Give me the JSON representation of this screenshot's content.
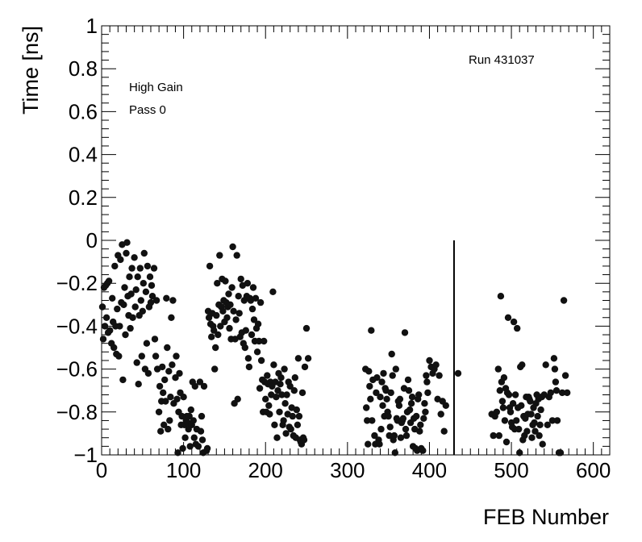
{
  "chart_data": {
    "type": "scatter",
    "xlabel": "FEB Number",
    "ylabel": "Time [ns]",
    "xlim": [
      0,
      620
    ],
    "ylim": [
      -1,
      1
    ],
    "x_ticks": [
      0,
      100,
      200,
      300,
      400,
      500,
      600
    ],
    "y_ticks": [
      -1,
      -0.8,
      -0.6,
      -0.4,
      -0.2,
      0,
      0.2,
      0.4,
      0.6,
      0.8,
      1
    ],
    "x_tick_labels": [
      "0",
      "100",
      "200",
      "300",
      "400",
      "500",
      "600"
    ],
    "y_tick_labels": [
      "−1",
      "−0.8",
      "−0.6",
      "−0.4",
      "−0.2",
      "0",
      "0.2",
      "0.4",
      "0.6",
      "0.8",
      "1"
    ],
    "annotations": {
      "run": "Run 431037",
      "gain": "High Gain",
      "pass": "Pass 0"
    },
    "grid": false,
    "marker": "filled-circle",
    "marker_color": "#111111",
    "vertical_line": {
      "x": 430,
      "y_from": -1,
      "y_to": 0
    },
    "points": [
      [
        1,
        -0.31
      ],
      [
        2,
        -0.46
      ],
      [
        3,
        -0.22
      ],
      [
        4,
        -0.4
      ],
      [
        5,
        -0.21
      ],
      [
        6,
        -0.36
      ],
      [
        7,
        -0.2
      ],
      [
        8,
        -0.43
      ],
      [
        9,
        -0.19
      ],
      [
        10,
        -0.42
      ],
      [
        12,
        -0.48
      ],
      [
        13,
        -0.27
      ],
      [
        14,
        -0.38
      ],
      [
        15,
        -0.5
      ],
      [
        16,
        -0.12
      ],
      [
        17,
        -0.4
      ],
      [
        18,
        -0.53
      ],
      [
        19,
        -0.32
      ],
      [
        20,
        -0.07
      ],
      [
        21,
        -0.54
      ],
      [
        22,
        -0.4
      ],
      [
        23,
        -0.09
      ],
      [
        24,
        -0.29
      ],
      [
        25,
        -0.02
      ],
      [
        26,
        -0.65
      ],
      [
        27,
        -0.3
      ],
      [
        28,
        -0.22
      ],
      [
        29,
        -0.44
      ],
      [
        30,
        -0.06
      ],
      [
        31,
        -0.01
      ],
      [
        32,
        -0.26
      ],
      [
        33,
        -0.35
      ],
      [
        34,
        -0.17
      ],
      [
        35,
        -0.41
      ],
      [
        36,
        -0.25
      ],
      [
        37,
        -0.13
      ],
      [
        38,
        -0.36
      ],
      [
        40,
        -0.08
      ],
      [
        41,
        -0.31
      ],
      [
        42,
        -0.23
      ],
      [
        43,
        -0.57
      ],
      [
        44,
        -0.17
      ],
      [
        45,
        -0.67
      ],
      [
        46,
        -0.35
      ],
      [
        47,
        -0.13
      ],
      [
        48,
        -0.28
      ],
      [
        49,
        -0.54
      ],
      [
        50,
        -0.33
      ],
      [
        51,
        -0.2
      ],
      [
        52,
        -0.06
      ],
      [
        53,
        -0.6
      ],
      [
        54,
        -0.24
      ],
      [
        55,
        -0.48
      ],
      [
        56,
        -0.12
      ],
      [
        57,
        -0.62
      ],
      [
        58,
        -0.31
      ],
      [
        59,
        -0.17
      ],
      [
        60,
        -0.29
      ],
      [
        61,
        -0.21
      ],
      [
        62,
        -0.26
      ],
      [
        64,
        -0.13
      ],
      [
        65,
        -0.46
      ],
      [
        66,
        -0.54
      ],
      [
        67,
        -0.28
      ],
      [
        68,
        -0.6
      ],
      [
        70,
        -0.8
      ],
      [
        71,
        -0.68
      ],
      [
        72,
        -0.89
      ],
      [
        73,
        -0.75
      ],
      [
        74,
        -0.59
      ],
      [
        75,
        -0.71
      ],
      [
        76,
        -0.86
      ],
      [
        77,
        -0.65
      ],
      [
        78,
        -0.75
      ],
      [
        79,
        -0.27
      ],
      [
        80,
        -0.5
      ],
      [
        81,
        -0.88
      ],
      [
        82,
        -0.61
      ],
      [
        83,
        -0.84
      ],
      [
        84,
        -0.73
      ],
      [
        85,
        -0.36
      ],
      [
        86,
        -0.58
      ],
      [
        87,
        -0.28
      ],
      [
        88,
        -0.76
      ],
      [
        90,
        -0.64
      ],
      [
        91,
        -0.54
      ],
      [
        92,
        -0.74
      ],
      [
        93,
        -0.99
      ],
      [
        94,
        -0.8
      ],
      [
        95,
        -0.62
      ],
      [
        96,
        -0.71
      ],
      [
        97,
        -0.86
      ],
      [
        98,
        -0.82
      ],
      [
        99,
        -0.97
      ],
      [
        100,
        -0.73
      ],
      [
        101,
        -0.86
      ],
      [
        102,
        -0.92
      ],
      [
        103,
        -0.84
      ],
      [
        104,
        -0.82
      ],
      [
        105,
        -0.85
      ],
      [
        106,
        -0.88
      ],
      [
        107,
        -0.82
      ],
      [
        108,
        -0.96
      ],
      [
        109,
        -0.79
      ],
      [
        110,
        -0.86
      ],
      [
        111,
        -0.66
      ],
      [
        112,
        -0.84
      ],
      [
        113,
        -0.92
      ],
      [
        114,
        -0.68
      ],
      [
        115,
        -0.95
      ],
      [
        116,
        -0.88
      ],
      [
        118,
        -0.96
      ],
      [
        120,
        -0.66
      ],
      [
        121,
        -0.89
      ],
      [
        122,
        -0.82
      ],
      [
        123,
        -0.93
      ],
      [
        124,
        -0.99
      ],
      [
        125,
        -0.68
      ],
      [
        128,
        -0.98
      ],
      [
        129,
        -0.97
      ],
      [
        130,
        -0.33
      ],
      [
        131,
        -0.36
      ],
      [
        132,
        -0.12
      ],
      [
        133,
        -0.39
      ],
      [
        134,
        -0.45
      ],
      [
        135,
        -0.34
      ],
      [
        136,
        -0.4
      ],
      [
        137,
        -0.42
      ],
      [
        138,
        -0.6
      ],
      [
        139,
        -0.5
      ],
      [
        140,
        -0.35
      ],
      [
        141,
        -0.2
      ],
      [
        142,
        -0.44
      ],
      [
        143,
        -0.3
      ],
      [
        144,
        -0.07
      ],
      [
        145,
        -0.4
      ],
      [
        146,
        -0.31
      ],
      [
        147,
        -0.18
      ],
      [
        148,
        -0.33
      ],
      [
        149,
        -0.28
      ],
      [
        150,
        -0.38
      ],
      [
        151,
        -0.19
      ],
      [
        152,
        -0.29
      ],
      [
        153,
        -0.36
      ],
      [
        154,
        -0.31
      ],
      [
        155,
        -0.25
      ],
      [
        156,
        -0.41
      ],
      [
        157,
        -0.3
      ],
      [
        158,
        -0.46
      ],
      [
        159,
        -0.22
      ],
      [
        160,
        -0.03
      ],
      [
        161,
        -0.33
      ],
      [
        162,
        -0.76
      ],
      [
        163,
        -0.46
      ],
      [
        164,
        -0.37
      ],
      [
        165,
        -0.07
      ],
      [
        166,
        -0.74
      ],
      [
        167,
        -0.26
      ],
      [
        168,
        -0.34
      ],
      [
        169,
        -0.45
      ],
      [
        170,
        -0.18
      ],
      [
        171,
        -0.43
      ],
      [
        172,
        -0.21
      ],
      [
        173,
        -0.48
      ],
      [
        174,
        -0.28
      ],
      [
        175,
        -0.5
      ],
      [
        176,
        -0.42
      ],
      [
        177,
        -0.26
      ],
      [
        178,
        -0.2
      ],
      [
        179,
        -0.55
      ],
      [
        180,
        -0.59
      ],
      [
        181,
        -0.27
      ],
      [
        182,
        -0.28
      ],
      [
        183,
        -0.44
      ],
      [
        184,
        -0.32
      ],
      [
        185,
        -0.22
      ],
      [
        186,
        -0.37
      ],
      [
        187,
        -0.47
      ],
      [
        188,
        -0.27
      ],
      [
        189,
        -0.41
      ],
      [
        190,
        -0.52
      ],
      [
        191,
        -0.39
      ],
      [
        192,
        -0.47
      ],
      [
        193,
        -0.69
      ],
      [
        194,
        -0.29
      ],
      [
        195,
        -0.56
      ],
      [
        196,
        -0.65
      ],
      [
        197,
        -0.8
      ],
      [
        198,
        -0.47
      ],
      [
        199,
        -0.66
      ],
      [
        200,
        -0.74
      ],
      [
        201,
        -0.8
      ],
      [
        202,
        -0.63
      ],
      [
        203,
        -0.67
      ],
      [
        204,
        -0.77
      ],
      [
        205,
        -0.81
      ],
      [
        206,
        -0.66
      ],
      [
        207,
        -0.72
      ],
      [
        208,
        -0.68
      ],
      [
        209,
        -0.24
      ],
      [
        210,
        -0.58
      ],
      [
        211,
        -0.86
      ],
      [
        212,
        -0.66
      ],
      [
        213,
        -0.73
      ],
      [
        214,
        -0.92
      ],
      [
        215,
        -0.7
      ],
      [
        216,
        -0.62
      ],
      [
        217,
        -0.8
      ],
      [
        218,
        -0.67
      ],
      [
        219,
        -0.64
      ],
      [
        220,
        -0.72
      ],
      [
        221,
        -0.86
      ],
      [
        222,
        -0.84
      ],
      [
        223,
        -0.6
      ],
      [
        224,
        -0.76
      ],
      [
        225,
        -0.9
      ],
      [
        226,
        -0.72
      ],
      [
        227,
        -0.81
      ],
      [
        228,
        -0.66
      ],
      [
        229,
        -0.87
      ],
      [
        230,
        -0.68
      ],
      [
        231,
        -0.88
      ],
      [
        232,
        -0.78
      ],
      [
        233,
        -0.82
      ],
      [
        234,
        -0.91
      ],
      [
        235,
        -0.7
      ],
      [
        236,
        -0.64
      ],
      [
        237,
        -0.92
      ],
      [
        238,
        -0.79
      ],
      [
        239,
        -0.86
      ],
      [
        240,
        -0.55
      ],
      [
        241,
        -0.82
      ],
      [
        242,
        -0.93
      ],
      [
        243,
        -0.94
      ],
      [
        244,
        -0.95
      ],
      [
        245,
        -0.71
      ],
      [
        246,
        -0.92
      ],
      [
        247,
        -0.93
      ],
      [
        248,
        -0.59
      ],
      [
        250,
        -0.41
      ],
      [
        252,
        -0.55
      ],
      [
        322,
        -0.6
      ],
      [
        323,
        -0.78
      ],
      [
        324,
        -0.84
      ],
      [
        325,
        -0.95
      ],
      [
        326,
        -0.61
      ],
      [
        327,
        -0.68
      ],
      [
        328,
        -0.74
      ],
      [
        329,
        -0.42
      ],
      [
        330,
        -0.84
      ],
      [
        331,
        -0.65
      ],
      [
        333,
        -0.91
      ],
      [
        334,
        -0.95
      ],
      [
        335,
        -0.71
      ],
      [
        336,
        -0.64
      ],
      [
        338,
        -0.93
      ],
      [
        339,
        -0.95
      ],
      [
        340,
        -0.73
      ],
      [
        341,
        -0.88
      ],
      [
        342,
        -0.66
      ],
      [
        343,
        -0.77
      ],
      [
        344,
        -0.62
      ],
      [
        345,
        -0.82
      ],
      [
        346,
        -0.69
      ],
      [
        347,
        -0.7
      ],
      [
        348,
        -0.74
      ],
      [
        349,
        -0.8
      ],
      [
        350,
        -0.82
      ],
      [
        351,
        -0.91
      ],
      [
        352,
        -0.87
      ],
      [
        353,
        -0.71
      ],
      [
        354,
        -0.53
      ],
      [
        355,
        -0.63
      ],
      [
        356,
        -0.93
      ],
      [
        357,
        -0.91
      ],
      [
        358,
        -0.99
      ],
      [
        359,
        -0.6
      ],
      [
        360,
        -0.83
      ],
      [
        361,
        -0.84
      ],
      [
        362,
        -0.75
      ],
      [
        363,
        -0.77
      ],
      [
        364,
        -0.74
      ],
      [
        365,
        -0.92
      ],
      [
        366,
        -0.85
      ],
      [
        367,
        -0.84
      ],
      [
        368,
        -0.83
      ],
      [
        369,
        -0.69
      ],
      [
        370,
        -0.43
      ],
      [
        371,
        -0.88
      ],
      [
        372,
        -0.91
      ],
      [
        373,
        -0.8
      ],
      [
        374,
        -0.65
      ],
      [
        375,
        -0.7
      ],
      [
        376,
        -0.79
      ],
      [
        377,
        -0.85
      ],
      [
        378,
        -0.76
      ],
      [
        379,
        -0.73
      ],
      [
        380,
        -0.96
      ],
      [
        381,
        -0.83
      ],
      [
        382,
        -0.88
      ],
      [
        383,
        -0.97
      ],
      [
        384,
        -0.82
      ],
      [
        385,
        -0.98
      ],
      [
        386,
        -0.74
      ],
      [
        387,
        -0.72
      ],
      [
        388,
        -0.89
      ],
      [
        389,
        -0.86
      ],
      [
        390,
        -0.97
      ],
      [
        392,
        -0.98
      ],
      [
        393,
        -0.83
      ],
      [
        394,
        -0.76
      ],
      [
        395,
        -0.8
      ],
      [
        396,
        -0.63
      ],
      [
        397,
        -0.66
      ],
      [
        398,
        -0.71
      ],
      [
        400,
        -0.56
      ],
      [
        402,
        -0.59
      ],
      [
        404,
        -0.62
      ],
      [
        406,
        -0.6
      ],
      [
        408,
        -0.58
      ],
      [
        410,
        -0.74
      ],
      [
        412,
        -0.63
      ],
      [
        414,
        -0.81
      ],
      [
        416,
        -0.75
      ],
      [
        418,
        -0.89
      ],
      [
        420,
        -0.77
      ],
      [
        435,
        -0.62
      ],
      [
        476,
        -0.81
      ],
      [
        478,
        -0.91
      ],
      [
        480,
        -0.82
      ],
      [
        482,
        -0.8
      ],
      [
        484,
        -0.6
      ],
      [
        485,
        -0.91
      ],
      [
        486,
        -0.7
      ],
      [
        487,
        -0.26
      ],
      [
        488,
        -0.66
      ],
      [
        489,
        -0.75
      ],
      [
        490,
        -0.78
      ],
      [
        491,
        -0.64
      ],
      [
        492,
        -0.84
      ],
      [
        493,
        -0.69
      ],
      [
        494,
        -0.94
      ],
      [
        495,
        -0.71
      ],
      [
        496,
        -0.36
      ],
      [
        497,
        -0.72
      ],
      [
        498,
        -0.78
      ],
      [
        499,
        -0.8
      ],
      [
        500,
        -0.85
      ],
      [
        501,
        -0.87
      ],
      [
        502,
        -0.76
      ],
      [
        503,
        -0.38
      ],
      [
        504,
        -0.88
      ],
      [
        505,
        -0.72
      ],
      [
        506,
        -0.84
      ],
      [
        507,
        -0.41
      ],
      [
        508,
        -0.78
      ],
      [
        509,
        -0.88
      ],
      [
        510,
        -0.99
      ],
      [
        511,
        -0.59
      ],
      [
        512,
        -0.77
      ],
      [
        513,
        -0.58
      ],
      [
        514,
        -0.93
      ],
      [
        515,
        -0.82
      ],
      [
        516,
        -0.91
      ],
      [
        517,
        -0.83
      ],
      [
        518,
        -0.73
      ],
      [
        519,
        -0.89
      ],
      [
        520,
        -0.81
      ],
      [
        521,
        -0.73
      ],
      [
        522,
        -0.74
      ],
      [
        523,
        -0.75
      ],
      [
        524,
        -0.81
      ],
      [
        525,
        -0.92
      ],
      [
        526,
        -0.86
      ],
      [
        527,
        -0.78
      ],
      [
        528,
        -0.85
      ],
      [
        529,
        -0.89
      ],
      [
        530,
        -0.76
      ],
      [
        531,
        -0.72
      ],
      [
        532,
        -0.82
      ],
      [
        533,
        -0.74
      ],
      [
        534,
        -0.91
      ],
      [
        535,
        -0.86
      ],
      [
        536,
        -0.79
      ],
      [
        537,
        -0.73
      ],
      [
        538,
        -0.95
      ],
      [
        540,
        -0.72
      ],
      [
        542,
        -0.58
      ],
      [
        544,
        -0.86
      ],
      [
        546,
        -0.73
      ],
      [
        548,
        -0.71
      ],
      [
        550,
        -0.84
      ],
      [
        552,
        -0.55
      ],
      [
        553,
        -0.6
      ],
      [
        554,
        -0.66
      ],
      [
        555,
        -0.7
      ],
      [
        556,
        -0.84
      ],
      [
        558,
        -0.99
      ],
      [
        560,
        -0.99
      ],
      [
        562,
        -0.71
      ],
      [
        564,
        -0.28
      ],
      [
        566,
        -0.63
      ],
      [
        568,
        -0.71
      ]
    ]
  }
}
